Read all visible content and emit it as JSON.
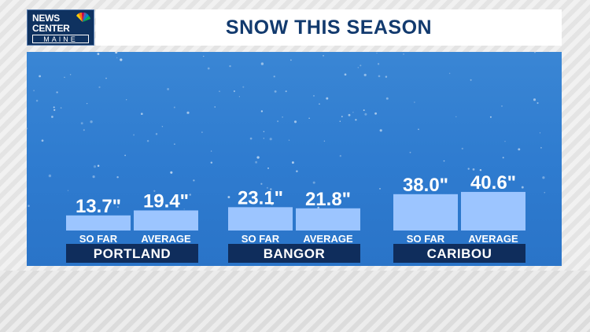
{
  "logo": {
    "line1": "NEWS",
    "line2": "CENTER",
    "line3": "MAINE"
  },
  "colors": {
    "bar": "#9cc5ff",
    "city_bar": "#0f2d5c",
    "title": "#123a6e"
  },
  "chart_data": {
    "type": "bar",
    "title": "SNOW THIS SEASON",
    "categories": [
      "PORTLAND",
      "BANGOR",
      "CARIBOU"
    ],
    "series": [
      {
        "name": "SO FAR",
        "values": [
          13.7,
          23.1,
          38.0
        ],
        "labels": [
          "13.7\"",
          "23.1\"",
          "38.0\""
        ]
      },
      {
        "name": "AVERAGE",
        "values": [
          19.4,
          21.8,
          40.6
        ],
        "labels": [
          "19.4\"",
          "21.8\"",
          "40.6\""
        ]
      }
    ],
    "unit": "inches"
  }
}
